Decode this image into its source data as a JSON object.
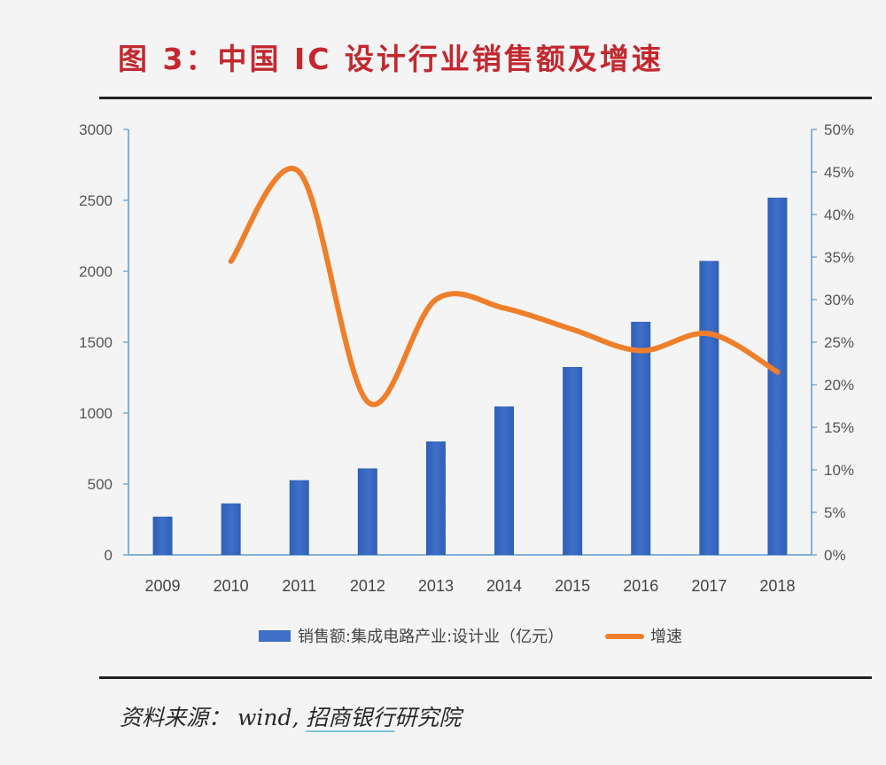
{
  "title": "图 3：中国 IC 设计行业销售额及增速",
  "source": {
    "prefix": "资料来源：",
    "wind": "wind,",
    "bank": "招商银行",
    "suffix": "研究院"
  },
  "colors": {
    "bar": "#3f6fc6",
    "line": "#ef7f2a",
    "title": "#c3282f",
    "axis": "#5b9bd5"
  },
  "chart_data": {
    "type": "bar",
    "categories": [
      "2009",
      "2010",
      "2011",
      "2012",
      "2013",
      "2014",
      "2015",
      "2016",
      "2017",
      "2018"
    ],
    "series": [
      {
        "name": "销售额:集成电路产业:设计业（亿元）",
        "type": "bar",
        "axis": "left",
        "values": [
          270,
          363,
          527,
          610,
          800,
          1047,
          1325,
          1644,
          2073,
          2519
        ]
      },
      {
        "name": "增速",
        "type": "line",
        "axis": "right",
        "values": [
          null,
          0.345,
          0.45,
          0.18,
          0.3,
          0.29,
          0.265,
          0.24,
          0.26,
          0.215
        ]
      }
    ],
    "ylim_left": [
      0,
      3000
    ],
    "yticks_left": [
      "0",
      "500",
      "1000",
      "1500",
      "2000",
      "2500",
      "3000"
    ],
    "ylim_right": [
      0,
      0.5
    ],
    "yticks_right": [
      "0%",
      "5%",
      "10%",
      "15%",
      "20%",
      "25%",
      "30%",
      "35%",
      "40%",
      "45%",
      "50%"
    ],
    "legend_position": "bottom",
    "grid": false
  }
}
